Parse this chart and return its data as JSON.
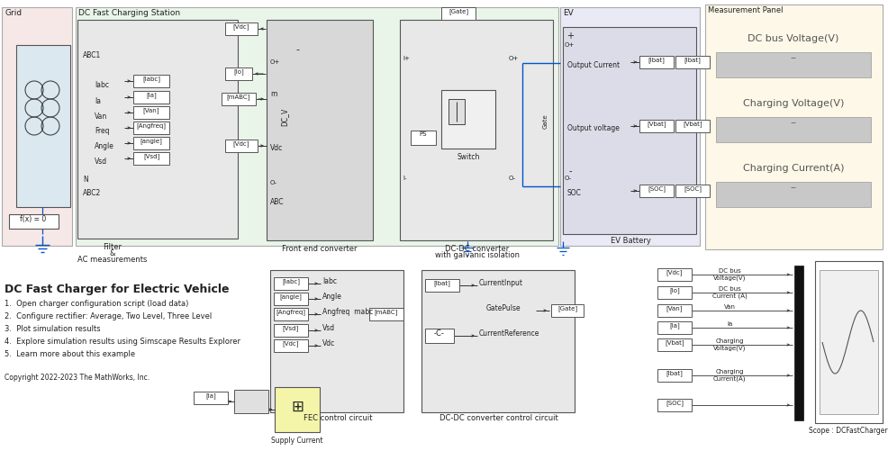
{
  "title": "DC Fast Charger for Electric Vehicle",
  "description_lines": [
    "1.  Open charger configuration script (load data)",
    "2.  Configure rectifier: Average, Two Level, Three Level",
    "3.  Plot simulation results",
    "4.  Explore simulation results using Simscape Results Explorer",
    "5.  Learn more about this example"
  ],
  "copyright": "Copyright 2022-2023 The MathWorks, Inc.",
  "bg_color": "#ffffff",
  "grid_bg": "#f7e8e8",
  "station_bg": "#eaf5ea",
  "ev_bg": "#eaeaf7",
  "measurement_bg": "#fdf8e8",
  "block_bg": "#d8d8d8",
  "block_bg2": "#e8e8e8",
  "white": "#ffffff",
  "border": "#666666",
  "dark": "#333333",
  "blue": "#0055cc",
  "red": "#cc2200"
}
